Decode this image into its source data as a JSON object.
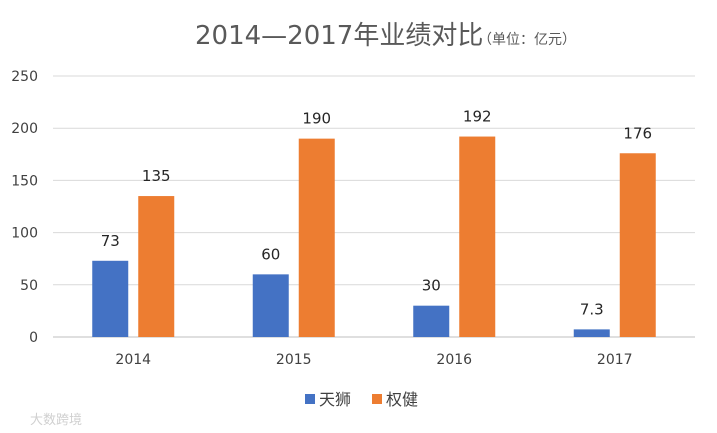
{
  "chart_data": {
    "type": "bar",
    "title": "2014—2017年业绩对比",
    "subtitle": "（单位：亿元）",
    "categories": [
      "2014",
      "2015",
      "2016",
      "2017"
    ],
    "series": [
      {
        "name": "天狮",
        "color": "#4472C4",
        "values": [
          73,
          60,
          30,
          7.3
        ],
        "labels": [
          "73",
          "60",
          "30",
          "7.3"
        ]
      },
      {
        "name": "权健",
        "color": "#ED7D31",
        "values": [
          135,
          190,
          192,
          176
        ],
        "labels": [
          "135",
          "190",
          "192",
          "176"
        ]
      }
    ],
    "ylim": [
      0,
      250
    ],
    "yticks": [
      "0",
      "50",
      "100",
      "150",
      "200",
      "250"
    ],
    "grid": true,
    "legend": "bottom"
  },
  "watermark": "大数跨境"
}
